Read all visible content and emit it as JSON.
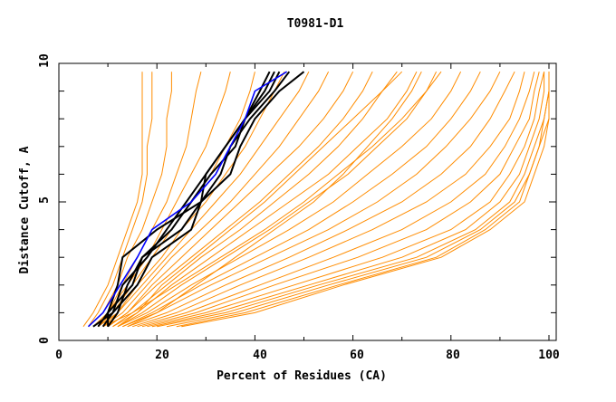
{
  "chart_data": {
    "type": "line",
    "title": "T0981-D1",
    "xlabel": "Percent of Residues (CA)",
    "ylabel": "Distance Cutoff, A",
    "xlim": [
      0,
      102
    ],
    "ylim": [
      0,
      10
    ],
    "x_ticks": [
      "0",
      "20",
      "40",
      "60",
      "80",
      "100"
    ],
    "y_ticks": [
      "0",
      "5",
      "10"
    ],
    "grid": false,
    "legend": "none",
    "colors": {
      "orange": "#ff8c00",
      "black": "#000000",
      "blue": "#0000ff"
    },
    "cutoffs": [
      0.5,
      1,
      2,
      3,
      4,
      5,
      6,
      7,
      8,
      9,
      9.7
    ],
    "orange_series": [
      [
        5,
        7,
        10,
        12,
        14,
        16,
        17,
        17,
        17,
        17,
        17
      ],
      [
        6,
        8,
        11,
        13,
        15,
        17,
        18,
        18,
        19,
        19,
        19
      ],
      [
        6,
        9,
        12,
        14,
        17,
        19,
        21,
        22,
        22,
        23,
        23
      ],
      [
        7,
        10,
        13,
        16,
        19,
        22,
        24,
        26,
        27,
        28,
        29
      ],
      [
        7,
        10,
        14,
        18,
        21,
        24,
        27,
        30,
        32,
        34,
        35
      ],
      [
        8,
        11,
        15,
        19,
        23,
        27,
        31,
        34,
        37,
        39,
        40
      ],
      [
        8,
        12,
        16,
        21,
        25,
        30,
        34,
        38,
        41,
        44,
        46
      ],
      [
        9,
        12,
        17,
        22,
        27,
        32,
        37,
        41,
        45,
        49,
        51
      ],
      [
        9,
        13,
        18,
        23,
        29,
        35,
        40,
        45,
        49,
        53,
        55
      ],
      [
        10,
        14,
        19,
        25,
        31,
        37,
        43,
        49,
        54,
        58,
        60
      ],
      [
        10,
        14,
        20,
        27,
        34,
        41,
        47,
        53,
        58,
        62,
        64
      ],
      [
        11,
        15,
        22,
        29,
        37,
        44,
        51,
        57,
        62,
        66,
        69
      ],
      [
        11,
        16,
        23,
        31,
        39,
        47,
        55,
        61,
        67,
        71,
        73
      ],
      [
        12,
        17,
        25,
        34,
        43,
        51,
        59,
        65,
        71,
        75,
        78
      ],
      [
        12,
        18,
        27,
        37,
        47,
        56,
        63,
        70,
        76,
        80,
        82
      ],
      [
        13,
        19,
        29,
        40,
        51,
        60,
        68,
        75,
        80,
        84,
        86
      ],
      [
        13,
        20,
        31,
        43,
        55,
        65,
        73,
        79,
        84,
        88,
        90
      ],
      [
        14,
        22,
        34,
        47,
        59,
        70,
        78,
        84,
        88,
        91,
        93
      ],
      [
        15,
        24,
        37,
        51,
        64,
        75,
        83,
        88,
        92,
        94,
        95
      ],
      [
        16,
        26,
        41,
        56,
        70,
        80,
        87,
        91,
        94,
        96,
        97
      ],
      [
        17,
        28,
        44,
        61,
        75,
        84,
        90,
        93,
        96,
        97,
        98
      ],
      [
        18,
        30,
        48,
        66,
        80,
        88,
        92,
        95,
        97,
        98,
        99
      ],
      [
        19,
        32,
        51,
        70,
        83,
        90,
        94,
        96,
        98,
        99,
        99
      ],
      [
        20,
        34,
        53,
        73,
        85,
        92,
        95,
        97,
        99,
        100,
        100
      ],
      [
        22,
        36,
        55,
        75,
        86,
        93,
        96,
        98,
        99,
        100,
        100
      ],
      [
        24,
        38,
        57,
        77,
        87,
        94,
        96,
        98,
        100,
        100,
        100
      ],
      [
        25,
        40,
        58,
        78,
        88,
        95,
        97,
        99,
        100,
        100,
        100
      ],
      [
        14,
        20,
        28,
        36,
        44,
        52,
        58,
        63,
        68,
        72,
        74
      ],
      [
        9,
        15,
        24,
        33,
        42,
        50,
        57,
        64,
        70,
        75,
        77
      ],
      [
        12,
        16,
        21,
        28,
        35,
        42,
        48,
        54,
        60,
        66,
        70
      ]
    ],
    "black_series": [
      [
        10,
        10,
        12,
        13,
        20,
        29,
        33,
        35,
        39,
        44,
        47
      ],
      [
        8,
        10,
        15,
        17,
        25,
        29,
        30,
        34,
        38,
        41,
        43
      ],
      [
        7,
        11,
        16,
        19,
        27,
        29,
        35,
        37,
        40,
        45,
        50
      ],
      [
        9,
        11,
        13,
        18,
        22,
        26,
        30,
        34,
        38,
        42,
        44
      ],
      [
        10,
        12,
        14,
        17,
        23,
        27,
        31,
        36,
        38,
        43,
        45
      ]
    ],
    "blue_series": [
      [
        6,
        9,
        12.5,
        16,
        19,
        27,
        32,
        35,
        38,
        40,
        46.5
      ]
    ]
  }
}
